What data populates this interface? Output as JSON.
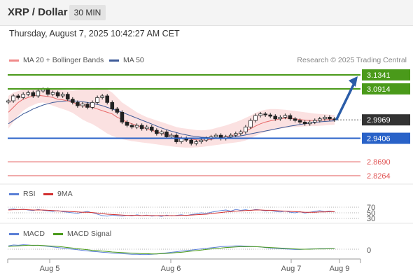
{
  "header": {
    "title": "XRP / Dollar",
    "interval": "30 MIN"
  },
  "timestamp": "Thursday, August 7, 2025 10:42:27 AM CET",
  "legend": {
    "ma20_bb": "MA 20 + Bollinger Bands",
    "ma50": "MA 50",
    "credit": "Research © 2025 Trading Central",
    "rsi": "RSI",
    "rsi_ma": "9MA",
    "macd": "MACD",
    "macd_signal": "MACD Signal"
  },
  "colors": {
    "resistance": "#4a9a1a",
    "support": "#2962c8",
    "lower_support": "#e05555",
    "current": "#333333",
    "arrow": "#2a5ca8",
    "ma20": "#e86a6a",
    "bollinger_fill": "#fadada",
    "ma50": "#3d5a98",
    "rsi": "#5a7fd6",
    "rsi_ma": "#d23030",
    "macd": "#5a7fd6",
    "macd_signal": "#4a9a1a"
  },
  "chart_data": [
    {
      "type": "line",
      "panel": "price",
      "x_ticks": [
        "Aug 5",
        "Aug 6",
        "Aug 7",
        "Aug 9"
      ],
      "levels": [
        {
          "value": 3.1341,
          "label": "3.1341",
          "kind": "resistance"
        },
        {
          "value": 3.0914,
          "label": "3.0914",
          "kind": "resistance"
        },
        {
          "value": 2.9969,
          "label": "2.9969",
          "kind": "current"
        },
        {
          "value": 2.9406,
          "label": "2.9406",
          "kind": "support"
        },
        {
          "value": 2.869,
          "label": "2.8690",
          "kind": "lower_support"
        },
        {
          "value": 2.8264,
          "label": "2.8264",
          "kind": "lower_support"
        }
      ],
      "forecast_arrow": {
        "from": 2.9969,
        "to": 3.1341
      },
      "series": [
        {
          "name": "XRP / Dollar",
          "values": [
            3.055,
            3.07,
            3.065,
            3.075,
            3.08,
            3.07,
            3.085,
            3.09,
            3.075,
            3.08,
            3.07,
            3.075,
            3.06,
            3.05,
            3.04,
            3.045,
            3.035,
            3.05,
            3.065,
            3.07,
            3.05,
            3.03,
            3.02,
            2.99,
            2.98,
            2.975,
            2.98,
            2.97,
            2.975,
            2.965,
            2.955,
            2.96,
            2.945,
            2.95,
            2.93,
            2.94,
            2.935,
            2.925,
            2.93,
            2.935,
            2.94,
            2.945,
            2.95,
            2.94,
            2.945,
            2.95,
            2.955,
            2.96,
            2.975,
            2.995,
            3.01,
            3.015,
            3.012,
            3.008,
            3.0,
            3.005,
            3.01,
            3.0,
            2.995,
            2.99,
            2.985,
            2.99,
            2.995,
            3.0,
            3.005,
            3.0,
            2.9969
          ]
        },
        {
          "name": "MA 20",
          "values": [
            3.02,
            3.035,
            3.05,
            3.06,
            3.065,
            3.07,
            3.072,
            3.07,
            3.068,
            3.065,
            3.06,
            3.058,
            3.055,
            3.05,
            3.045,
            3.04,
            3.038,
            3.035,
            3.03,
            3.025,
            3.02,
            3.015,
            3.005,
            2.998,
            2.99,
            2.985,
            2.98,
            2.975,
            2.97,
            2.965,
            2.96,
            2.955,
            2.952,
            2.95,
            2.945,
            2.942,
            2.94,
            2.938,
            2.936,
            2.935,
            2.936,
            2.937,
            2.94,
            2.942,
            2.945,
            2.948,
            2.952,
            2.956,
            2.962,
            2.97,
            2.978,
            2.985,
            2.99,
            2.994,
            2.997,
            3.0,
            3.002,
            3.002,
            3.0,
            2.998,
            2.996,
            2.995,
            2.995,
            2.996,
            2.997,
            2.998,
            2.998
          ]
        },
        {
          "name": "MA 50",
          "values": [
            2.985,
            2.995,
            3.005,
            3.015,
            3.022,
            3.03,
            3.036,
            3.042,
            3.046,
            3.05,
            3.052,
            3.054,
            3.055,
            3.055,
            3.054,
            3.052,
            3.05,
            3.047,
            3.044,
            3.04,
            3.035,
            3.03,
            3.025,
            3.02,
            3.014,
            3.008,
            3.002,
            2.996,
            2.99,
            2.984,
            2.978,
            2.972,
            2.967,
            2.962,
            2.958,
            2.954,
            2.951,
            2.948,
            2.946,
            2.944,
            2.943,
            2.942,
            2.942,
            2.942,
            2.943,
            2.944,
            2.946,
            2.948,
            2.951,
            2.954,
            2.957,
            2.96,
            2.963,
            2.966,
            2.969,
            2.972,
            2.975,
            2.978,
            2.98,
            2.983,
            2.985,
            2.987,
            2.989,
            2.991,
            2.992,
            2.993,
            2.994
          ]
        },
        {
          "name": "Bollinger Upper",
          "values": [
            3.07,
            3.08,
            3.085,
            3.09,
            3.092,
            3.094,
            3.095,
            3.094,
            3.093,
            3.092,
            3.09,
            3.088,
            3.087,
            3.086,
            3.088,
            3.09,
            3.092,
            3.094,
            3.095,
            3.094,
            3.09,
            3.08,
            3.065,
            3.05,
            3.04,
            3.03,
            3.02,
            3.012,
            3.005,
            3.0,
            2.995,
            2.99,
            2.985,
            2.98,
            2.975,
            2.972,
            2.97,
            2.968,
            2.966,
            2.965,
            2.966,
            2.968,
            2.972,
            2.976,
            2.98,
            2.985,
            2.99,
            2.996,
            3.003,
            3.01,
            3.018,
            3.024,
            3.028,
            3.03,
            3.03,
            3.029,
            3.028,
            3.026,
            3.024,
            3.022,
            3.02,
            3.018,
            3.016,
            3.015,
            3.014,
            3.013,
            3.012
          ]
        },
        {
          "name": "Bollinger Lower",
          "values": [
            2.97,
            2.99,
            3.01,
            3.025,
            3.035,
            3.042,
            3.048,
            3.05,
            3.046,
            3.04,
            3.035,
            3.03,
            3.025,
            3.018,
            3.008,
            2.998,
            2.99,
            2.984,
            2.975,
            2.965,
            2.955,
            2.948,
            2.942,
            2.938,
            2.935,
            2.932,
            2.93,
            2.928,
            2.926,
            2.924,
            2.922,
            2.92,
            2.918,
            2.916,
            2.914,
            2.913,
            2.912,
            2.912,
            2.913,
            2.914,
            2.916,
            2.918,
            2.92,
            2.922,
            2.924,
            2.926,
            2.928,
            2.93,
            2.934,
            2.94,
            2.948,
            2.955,
            2.96,
            2.964,
            2.967,
            2.97,
            2.972,
            2.974,
            2.975,
            2.976,
            2.977,
            2.978,
            2.978,
            2.979,
            2.98,
            2.981,
            2.982
          ]
        }
      ]
    },
    {
      "type": "line",
      "panel": "rsi",
      "ticks": [
        70,
        50,
        30
      ],
      "series": [
        {
          "name": "RSI",
          "values": [
            62,
            64,
            61,
            63,
            60,
            58,
            62,
            59,
            57,
            55,
            58,
            54,
            52,
            50,
            48,
            52,
            55,
            50,
            45,
            40,
            38,
            42,
            40,
            38,
            41,
            39,
            43,
            40,
            42,
            38,
            40,
            37,
            42,
            39,
            41,
            43,
            40,
            44,
            46,
            50,
            48,
            52,
            55,
            58,
            60,
            56,
            62,
            59,
            61,
            58,
            62,
            60,
            57,
            59,
            55,
            53,
            56,
            52,
            50,
            54,
            49,
            52,
            55,
            58,
            54,
            56,
            53
          ]
        },
        {
          "name": "9MA",
          "values": [
            60,
            61,
            61,
            62,
            61,
            60,
            60,
            60,
            59,
            58,
            57,
            56,
            55,
            54,
            53,
            52,
            52,
            51,
            49,
            47,
            45,
            44,
            43,
            42,
            41,
            41,
            41,
            40,
            41,
            40,
            40,
            40,
            40,
            40,
            40,
            41,
            41,
            42,
            43,
            44,
            45,
            47,
            49,
            51,
            53,
            54,
            56,
            57,
            58,
            59,
            60,
            60,
            59,
            59,
            58,
            57,
            56,
            55,
            54,
            53,
            52,
            52,
            52,
            53,
            53,
            54,
            54
          ]
        }
      ]
    },
    {
      "type": "line",
      "panel": "macd",
      "ticks": [
        0
      ],
      "series": [
        {
          "name": "MACD",
          "values": [
            0.012,
            0.015,
            0.014,
            0.016,
            0.015,
            0.013,
            0.014,
            0.012,
            0.01,
            0.008,
            0.006,
            0.004,
            0.002,
            0.0,
            -0.002,
            -0.004,
            -0.006,
            -0.008,
            -0.009,
            -0.011,
            -0.012,
            -0.014,
            -0.015,
            -0.016,
            -0.017,
            -0.018,
            -0.018,
            -0.019,
            -0.019,
            -0.018,
            -0.017,
            -0.015,
            -0.013,
            -0.011,
            -0.009,
            -0.007,
            -0.005,
            -0.003,
            -0.001,
            0.001,
            0.003,
            0.005,
            0.007,
            0.009,
            0.01,
            0.011,
            0.012,
            0.012,
            0.011,
            0.01,
            0.009,
            0.008,
            0.006,
            0.004,
            0.003,
            0.002,
            0.001,
            0.0,
            -0.001,
            -0.001,
            0.0,
            0.001,
            0.001,
            0.002,
            0.002,
            0.002,
            0.002
          ]
        },
        {
          "name": "MACD Signal",
          "values": [
            0.01,
            0.011,
            0.012,
            0.013,
            0.014,
            0.014,
            0.014,
            0.013,
            0.012,
            0.011,
            0.01,
            0.008,
            0.006,
            0.004,
            0.002,
            0.0,
            -0.002,
            -0.004,
            -0.005,
            -0.007,
            -0.008,
            -0.01,
            -0.011,
            -0.012,
            -0.013,
            -0.014,
            -0.015,
            -0.016,
            -0.016,
            -0.017,
            -0.017,
            -0.016,
            -0.015,
            -0.014,
            -0.012,
            -0.011,
            -0.009,
            -0.007,
            -0.005,
            -0.003,
            -0.001,
            0.001,
            0.003,
            0.004,
            0.006,
            0.007,
            0.008,
            0.009,
            0.009,
            0.009,
            0.009,
            0.008,
            0.007,
            0.006,
            0.005,
            0.004,
            0.003,
            0.002,
            0.001,
            0.0,
            0.0,
            0.0,
            0.001,
            0.001,
            0.001,
            0.002,
            0.002
          ]
        }
      ]
    }
  ]
}
